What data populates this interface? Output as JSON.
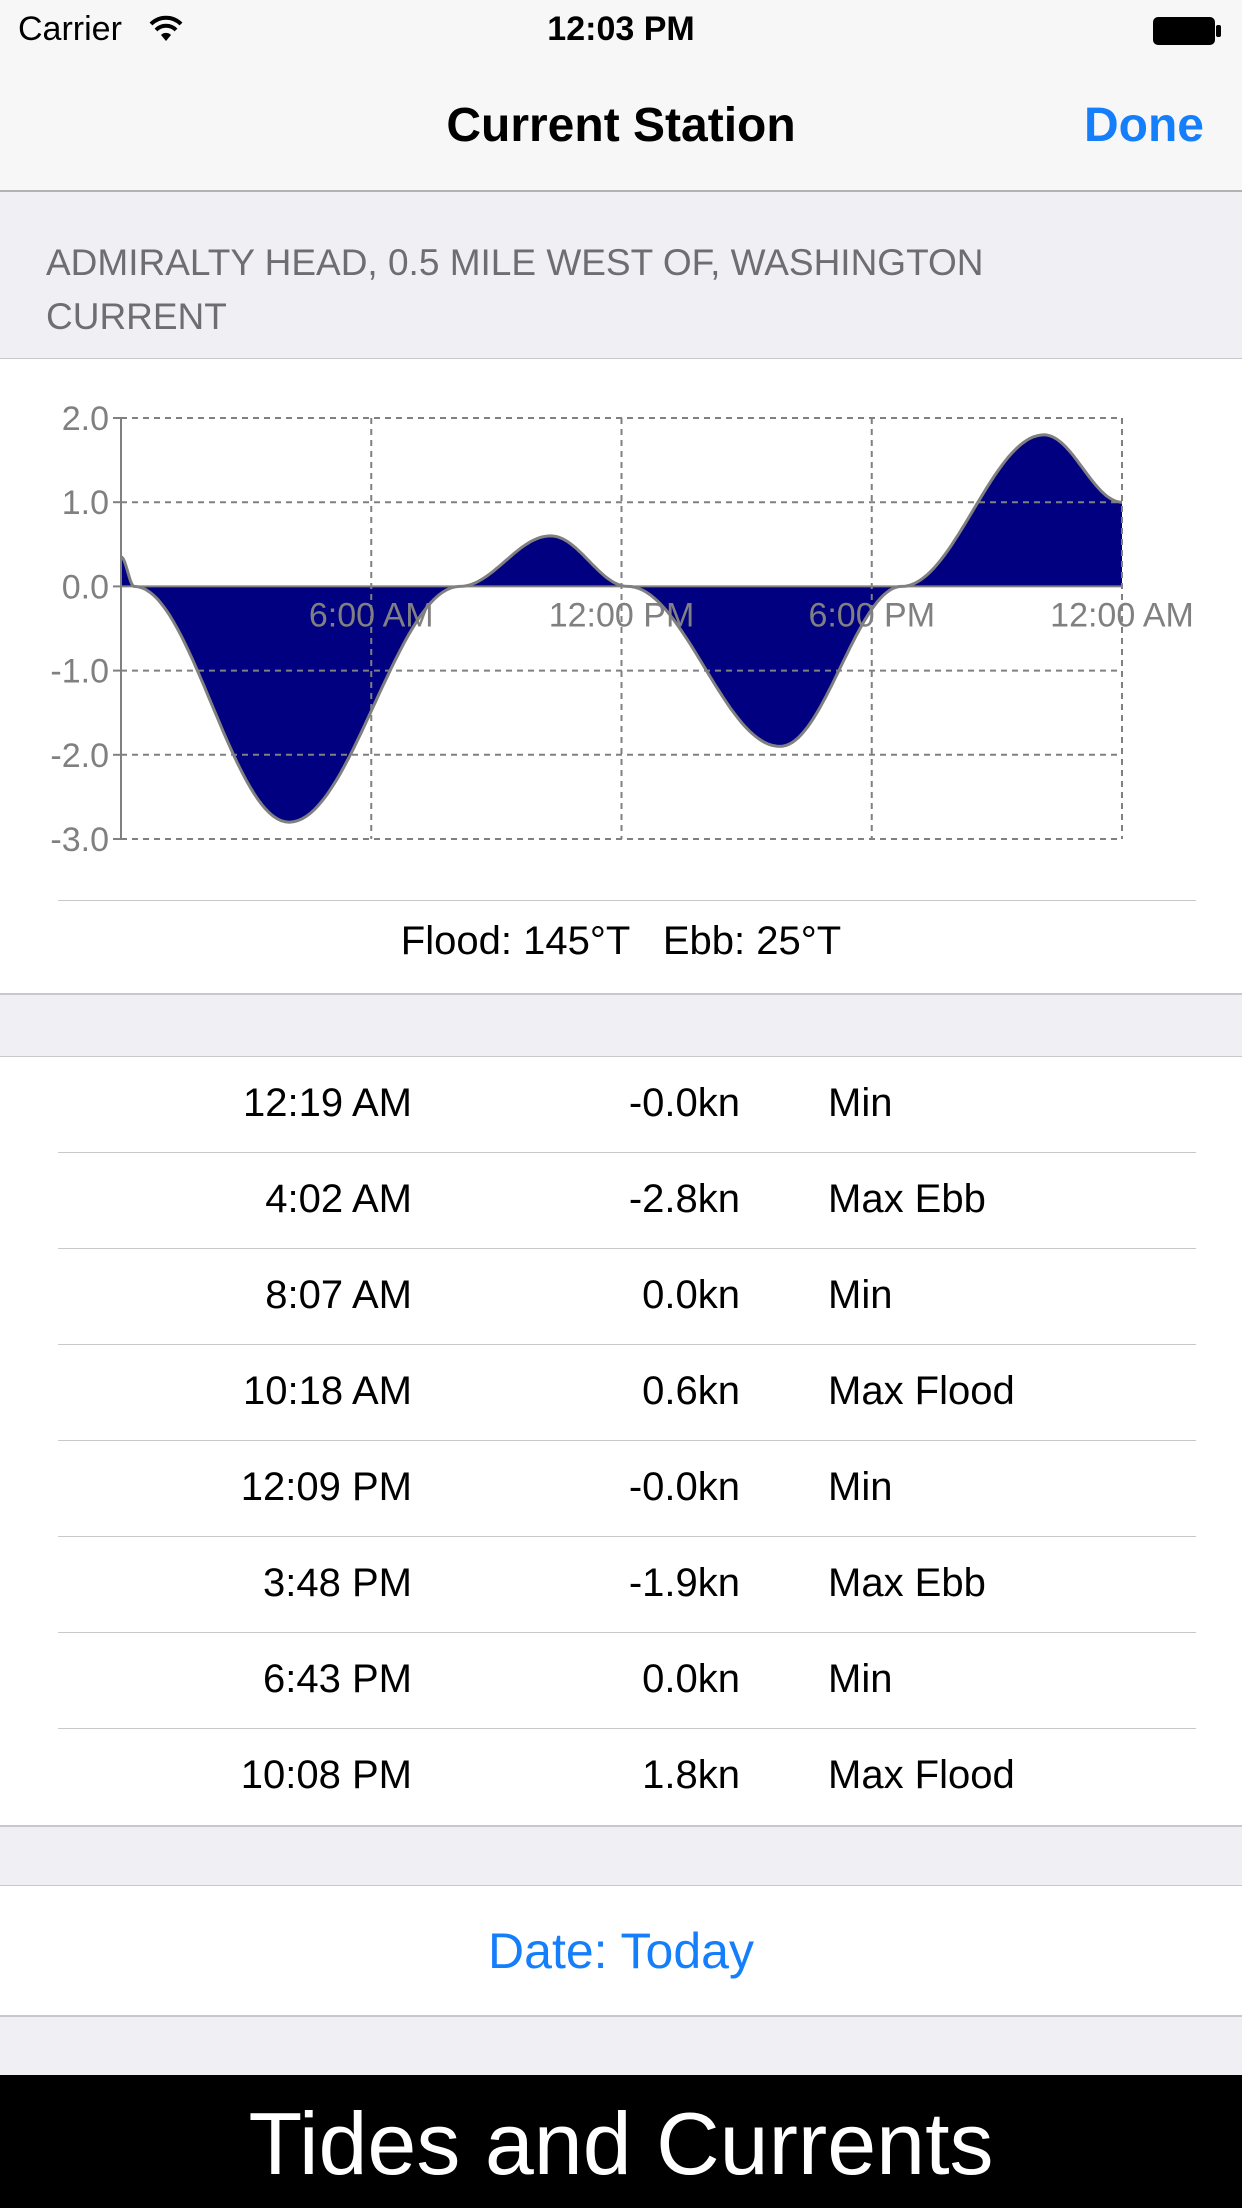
{
  "status_bar": {
    "carrier": "Carrier",
    "time": "12:03 PM",
    "wifi_icon": "wifi-icon",
    "battery_icon": "battery-icon"
  },
  "nav": {
    "title": "Current Station",
    "done_label": "Done"
  },
  "station": {
    "name_line1": "ADMIRALTY HEAD, 0.5 MILE WEST OF, WASHINGTON",
    "name_line2": "CURRENT"
  },
  "chart_data": {
    "type": "area",
    "title": "",
    "xlabel": "",
    "ylabel": "",
    "x_unit": "hours since midnight",
    "x_ticks": [
      {
        "hour": 6,
        "label": "6:00 AM"
      },
      {
        "hour": 12,
        "label": "12:00 PM"
      },
      {
        "hour": 18,
        "label": "6:00 PM"
      },
      {
        "hour": 24,
        "label": "12:00 AM"
      }
    ],
    "y_ticks": [
      "2.0",
      "1.0",
      "0.0",
      "-1.0",
      "-2.0",
      "-3.0"
    ],
    "xlim": [
      0,
      24
    ],
    "ylim": [
      -3.0,
      2.0
    ],
    "grid": true,
    "points": [
      {
        "x": 0.0,
        "y": 0.35
      },
      {
        "x": 0.32,
        "y": 0.0
      },
      {
        "x": 4.03,
        "y": -2.8
      },
      {
        "x": 8.12,
        "y": 0.0
      },
      {
        "x": 10.3,
        "y": 0.6
      },
      {
        "x": 12.15,
        "y": 0.0
      },
      {
        "x": 15.8,
        "y": -1.9
      },
      {
        "x": 18.72,
        "y": 0.0
      },
      {
        "x": 22.13,
        "y": 1.8
      },
      {
        "x": 24.0,
        "y": 1.0
      }
    ],
    "colors": {
      "flood": "#000080",
      "ebb": "#800000",
      "curve": "#808080",
      "grid": "#808080",
      "axis_text": "#808080"
    }
  },
  "directions": {
    "text": "Flood: 145°T   Ebb: 25°T"
  },
  "events": [
    {
      "time": "12:19 AM",
      "speed": "-0.0kn",
      "type": "Min"
    },
    {
      "time": "4:02 AM",
      "speed": "-2.8kn",
      "type": "Max Ebb"
    },
    {
      "time": "8:07 AM",
      "speed": "0.0kn",
      "type": "Min"
    },
    {
      "time": "10:18 AM",
      "speed": "0.6kn",
      "type": "Max Flood"
    },
    {
      "time": "12:09 PM",
      "speed": "-0.0kn",
      "type": "Min"
    },
    {
      "time": "3:48 PM",
      "speed": "-1.9kn",
      "type": "Max Ebb"
    },
    {
      "time": "6:43 PM",
      "speed": "0.0kn",
      "type": "Min"
    },
    {
      "time": "10:08 PM",
      "speed": "1.8kn",
      "type": "Max Flood"
    }
  ],
  "date_button": {
    "label": "Date: Today"
  },
  "banner": {
    "text": "Tides and Currents"
  },
  "colors": {
    "accent": "#157efb",
    "background": "#efeff4"
  }
}
